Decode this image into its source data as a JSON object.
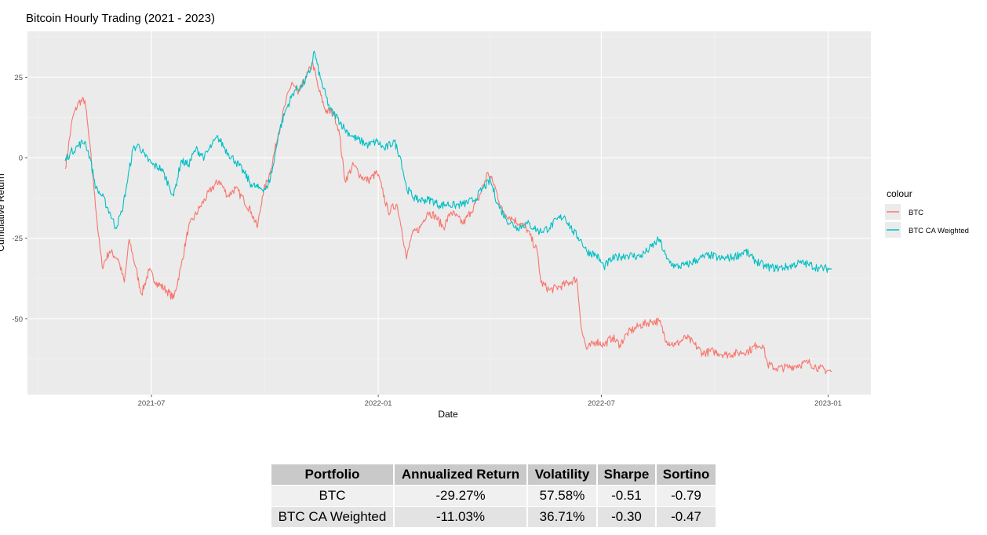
{
  "chart_data": {
    "type": "line",
    "title": "Bitcoin Hourly Trading (2021 - 2023)",
    "xlabel": "Date",
    "ylabel": "Cumulative Return",
    "x_origin": "2021-07-01",
    "xlim_days": [
      -100.6,
      583.7
    ],
    "ylim": [
      -73.5,
      39.2
    ],
    "x_ticks": [
      {
        "label": "2021-07",
        "day": 0
      },
      {
        "label": "2022-01",
        "day": 184
      },
      {
        "label": "2022-07",
        "day": 365
      },
      {
        "label": "2023-01",
        "day": 549
      }
    ],
    "y_ticks": [
      {
        "label": "25",
        "value": 25
      },
      {
        "label": "0",
        "value": 0
      },
      {
        "label": "-25",
        "value": -25
      },
      {
        "label": "-50",
        "value": -50
      }
    ],
    "grid": true,
    "legend": {
      "title": "colour",
      "placement": "right"
    },
    "series": [
      {
        "name": "BTC",
        "color": "#F8766D",
        "points": [
          [
            -70,
            -3.4
          ],
          [
            -64,
            12.4
          ],
          [
            -59,
            17.3
          ],
          [
            -54,
            17.8
          ],
          [
            -51,
            7.5
          ],
          [
            -46,
            -11.9
          ],
          [
            -43,
            -24.1
          ],
          [
            -40,
            -33.8
          ],
          [
            -34,
            -29.0
          ],
          [
            -27,
            -31.4
          ],
          [
            -22,
            -38.7
          ],
          [
            -18,
            -25.3
          ],
          [
            -13,
            -33.8
          ],
          [
            -8,
            -42.3
          ],
          [
            -2,
            -35.0
          ],
          [
            4,
            -38.7
          ],
          [
            12,
            -41.1
          ],
          [
            18,
            -43.6
          ],
          [
            24,
            -33.8
          ],
          [
            30,
            -21.7
          ],
          [
            39,
            -15.6
          ],
          [
            49,
            -9.5
          ],
          [
            55,
            -7.1
          ],
          [
            62,
            -11.9
          ],
          [
            68,
            -9.5
          ],
          [
            75,
            -13.1
          ],
          [
            81,
            -16.8
          ],
          [
            86,
            -21.7
          ],
          [
            90,
            -11.9
          ],
          [
            97,
            -3.4
          ],
          [
            103,
            7.5
          ],
          [
            109,
            17.3
          ],
          [
            114,
            23.4
          ],
          [
            119,
            19.7
          ],
          [
            125,
            24.6
          ],
          [
            131,
            29.4
          ],
          [
            135,
            22.1
          ],
          [
            141,
            14.8
          ],
          [
            148,
            13.6
          ],
          [
            152,
            8.8
          ],
          [
            157,
            -7.1
          ],
          [
            164,
            -2.2
          ],
          [
            170,
            -5.8
          ],
          [
            176,
            -7.1
          ],
          [
            183,
            -4.6
          ],
          [
            187,
            -9.5
          ],
          [
            192,
            -16.8
          ],
          [
            199,
            -14.4
          ],
          [
            203,
            -21.7
          ],
          [
            207,
            -31.4
          ],
          [
            211,
            -24.1
          ],
          [
            218,
            -21.7
          ],
          [
            224,
            -16.8
          ],
          [
            230,
            -18.0
          ],
          [
            237,
            -21.7
          ],
          [
            243,
            -16.8
          ],
          [
            253,
            -20.4
          ],
          [
            259,
            -16.8
          ],
          [
            265,
            -13.1
          ],
          [
            273,
            -4.6
          ],
          [
            278,
            -8.3
          ],
          [
            285,
            -16.8
          ],
          [
            294,
            -19.2
          ],
          [
            304,
            -21.7
          ],
          [
            313,
            -29.0
          ],
          [
            316,
            -38.7
          ],
          [
            323,
            -41.1
          ],
          [
            332,
            -39.9
          ],
          [
            339,
            -38.7
          ],
          [
            345,
            -37.5
          ],
          [
            349,
            -53.3
          ],
          [
            353,
            -59.4
          ],
          [
            361,
            -56.9
          ],
          [
            367,
            -58.1
          ],
          [
            374,
            -55.7
          ],
          [
            380,
            -58.1
          ],
          [
            386,
            -54.5
          ],
          [
            396,
            -52.1
          ],
          [
            406,
            -50.8
          ],
          [
            412,
            -50.8
          ],
          [
            418,
            -56.9
          ],
          [
            425,
            -58.1
          ],
          [
            434,
            -55.7
          ],
          [
            441,
            -58.1
          ],
          [
            447,
            -60.6
          ],
          [
            456,
            -60.1
          ],
          [
            466,
            -61.1
          ],
          [
            476,
            -60.6
          ],
          [
            485,
            -59.9
          ],
          [
            491,
            -58.1
          ],
          [
            496,
            -58.1
          ],
          [
            500,
            -64.2
          ],
          [
            507,
            -65.4
          ],
          [
            517,
            -65.0
          ],
          [
            526,
            -64.2
          ],
          [
            533,
            -63.5
          ],
          [
            542,
            -65.4
          ],
          [
            552,
            -66.4
          ]
        ]
      },
      {
        "name": "BTC CA Weighted",
        "color": "#00BFC4",
        "points": [
          [
            -70,
            -1.0
          ],
          [
            -66,
            1.5
          ],
          [
            -59,
            3.9
          ],
          [
            -54,
            5.1
          ],
          [
            -50,
            0.2
          ],
          [
            -45,
            -9.5
          ],
          [
            -40,
            -11.9
          ],
          [
            -34,
            -16.8
          ],
          [
            -29,
            -21.7
          ],
          [
            -24,
            -16.8
          ],
          [
            -20,
            -8.3
          ],
          [
            -15,
            2.7
          ],
          [
            -10,
            3.9
          ],
          [
            -5,
            0.2
          ],
          [
            1,
            -2.2
          ],
          [
            8,
            -3.4
          ],
          [
            14,
            -8.3
          ],
          [
            18,
            -11.9
          ],
          [
            24,
            -1.0
          ],
          [
            30,
            -2.2
          ],
          [
            36,
            2.7
          ],
          [
            43,
            0.2
          ],
          [
            49,
            3.9
          ],
          [
            54,
            6.3
          ],
          [
            62,
            1.5
          ],
          [
            68,
            -1.0
          ],
          [
            75,
            -4.6
          ],
          [
            81,
            -8.3
          ],
          [
            87,
            -9.5
          ],
          [
            94,
            -9.5
          ],
          [
            99,
            -2.2
          ],
          [
            103,
            7.5
          ],
          [
            109,
            14.8
          ],
          [
            116,
            20.9
          ],
          [
            122,
            22.1
          ],
          [
            129,
            27.0
          ],
          [
            132,
            33.1
          ],
          [
            137,
            24.6
          ],
          [
            145,
            14.8
          ],
          [
            151,
            12.4
          ],
          [
            157,
            8.8
          ],
          [
            164,
            6.3
          ],
          [
            170,
            5.1
          ],
          [
            176,
            3.9
          ],
          [
            183,
            5.1
          ],
          [
            189,
            2.7
          ],
          [
            197,
            5.1
          ],
          [
            202,
            0.2
          ],
          [
            207,
            -9.5
          ],
          [
            215,
            -13.1
          ],
          [
            221,
            -13.1
          ],
          [
            227,
            -13.1
          ],
          [
            234,
            -14.8
          ],
          [
            240,
            -14.4
          ],
          [
            246,
            -14.8
          ],
          [
            253,
            -14.4
          ],
          [
            262,
            -13.1
          ],
          [
            269,
            -9.5
          ],
          [
            275,
            -7.1
          ],
          [
            281,
            -14.4
          ],
          [
            288,
            -19.2
          ],
          [
            297,
            -21.7
          ],
          [
            305,
            -20.4
          ],
          [
            310,
            -21.7
          ],
          [
            315,
            -22.9
          ],
          [
            323,
            -21.7
          ],
          [
            329,
            -19.2
          ],
          [
            335,
            -18.0
          ],
          [
            342,
            -22.9
          ],
          [
            348,
            -25.3
          ],
          [
            353,
            -29.0
          ],
          [
            361,
            -30.2
          ],
          [
            367,
            -33.8
          ],
          [
            374,
            -31.4
          ],
          [
            380,
            -30.7
          ],
          [
            386,
            -30.2
          ],
          [
            396,
            -30.7
          ],
          [
            402,
            -29.0
          ],
          [
            412,
            -25.3
          ],
          [
            418,
            -31.4
          ],
          [
            425,
            -33.8
          ],
          [
            434,
            -33.3
          ],
          [
            444,
            -31.4
          ],
          [
            453,
            -30.2
          ],
          [
            462,
            -31.4
          ],
          [
            472,
            -30.9
          ],
          [
            482,
            -29.0
          ],
          [
            488,
            -31.4
          ],
          [
            498,
            -33.8
          ],
          [
            507,
            -34.3
          ],
          [
            517,
            -33.8
          ],
          [
            526,
            -32.6
          ],
          [
            533,
            -33.1
          ],
          [
            542,
            -34.3
          ],
          [
            552,
            -34.5
          ]
        ]
      }
    ]
  },
  "table": {
    "headers": [
      "Portfolio",
      "Annualized Return",
      "Volatility",
      "Sharpe",
      "Sortino"
    ],
    "rows": [
      [
        "BTC",
        "-29.27%",
        "57.58%",
        "-0.51",
        "-0.79"
      ],
      [
        "BTC CA Weighted",
        "-11.03%",
        "36.71%",
        "-0.30",
        "-0.47"
      ]
    ]
  }
}
